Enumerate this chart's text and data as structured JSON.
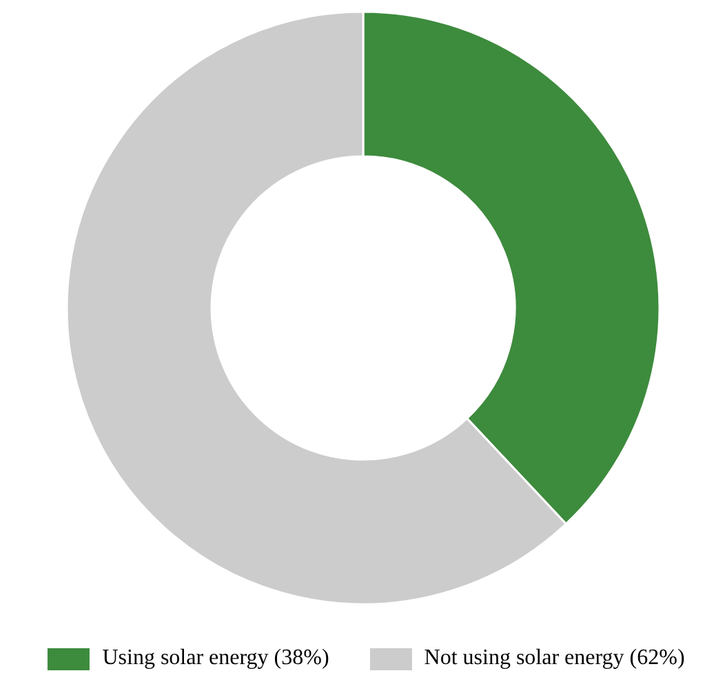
{
  "chart_data": {
    "type": "donut",
    "categories": [
      "Using solar energy (38%)",
      "Not using solar energy (62%)"
    ],
    "values": [
      38,
      62
    ],
    "colors": [
      "#3d8b3d",
      "#cccccc"
    ],
    "legend": "bottom"
  }
}
